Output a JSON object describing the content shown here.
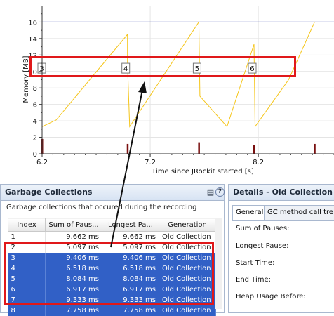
{
  "chart_data": {
    "type": "line",
    "ylabel": "Memory [MB]",
    "xlabel": "Time since JRockit started [s]",
    "yticks": [
      0,
      2,
      4,
      6,
      8,
      10,
      12,
      14,
      16
    ],
    "xtick_labels": [
      "6.2",
      "7.2",
      "8.2"
    ],
    "xticks": [
      6.2,
      7.2,
      8.2
    ],
    "xlim": [
      6.2,
      8.9
    ],
    "ylim": [
      0,
      18
    ],
    "grid": true,
    "series": [
      {
        "color": "#f5c518",
        "x": [
          6.2,
          6.2,
          6.33,
          6.99,
          6.99,
          7.01,
          7.65,
          7.66,
          7.91,
          8.16,
          8.17,
          8.48,
          8.72
        ],
        "y": [
          6.0,
          3.3,
          4.1,
          14.5,
          11.0,
          3.3,
          16.0,
          7.0,
          3.3,
          13.3,
          3.3,
          9.0,
          16.0
        ]
      },
      {
        "color": "#1f2fa0",
        "x": [
          6.2,
          8.9
        ],
        "y": [
          16,
          16
        ]
      }
    ],
    "gc_markers": {
      "labels": [
        "3",
        "4",
        "5",
        "6"
      ],
      "x": [
        6.2,
        6.99,
        7.65,
        8.16
      ],
      "y_label": 10.4,
      "bar_x": [
        6.2,
        6.99,
        7.65,
        8.16,
        8.72
      ],
      "bar_h": [
        1.8,
        1.2,
        1.4,
        1.1,
        1.2
      ],
      "bar_color": "#7a1010"
    }
  },
  "gc_panel": {
    "title": "Garbage Collections",
    "subtitle": "Garbage collections that occured during the recording",
    "headers": [
      "Index",
      "Sum of Paus...",
      "Longest Pa...",
      "Generation"
    ],
    "rows": [
      {
        "index": "1",
        "sum": "9.662 ms",
        "longest": "9.662 ms",
        "gen": "Old Collection",
        "selected": false
      },
      {
        "index": "2",
        "sum": "5.097 ms",
        "longest": "5.097 ms",
        "gen": "Old Collection",
        "selected": false
      },
      {
        "index": "3",
        "sum": "9.406 ms",
        "longest": "9.406 ms",
        "gen": "Old Collection",
        "selected": true
      },
      {
        "index": "4",
        "sum": "6.518 ms",
        "longest": "6.518 ms",
        "gen": "Old Collection",
        "selected": true
      },
      {
        "index": "5",
        "sum": "8.084 ms",
        "longest": "8.084 ms",
        "gen": "Old Collection",
        "selected": true
      },
      {
        "index": "6",
        "sum": "6.917 ms",
        "longest": "6.917 ms",
        "gen": "Old Collection",
        "selected": true
      },
      {
        "index": "7",
        "sum": "9.333 ms",
        "longest": "9.333 ms",
        "gen": "Old Collection",
        "selected": true
      },
      {
        "index": "8",
        "sum": "7.758 ms",
        "longest": "7.758 ms",
        "gen": "Old Collection",
        "selected": true
      }
    ]
  },
  "details_panel": {
    "title": "Details - Old Collection",
    "tabs": [
      "General",
      "GC method call tre"
    ],
    "labels": [
      "Sum of Pauses:",
      "Longest Pause:",
      "Start Time:",
      "End Time:",
      "Heap Usage Before:"
    ]
  },
  "colors": {
    "highlight": "#e0181a",
    "selection": "#3160c6",
    "arrow": "#111111"
  },
  "icons": [
    "table-settings-icon",
    "help-icon"
  ]
}
